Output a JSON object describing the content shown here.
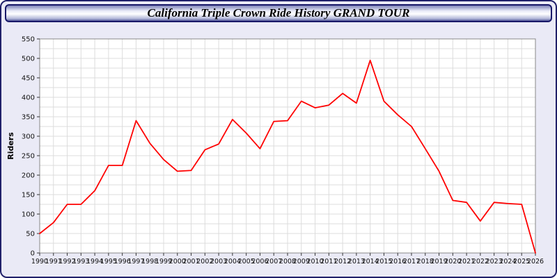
{
  "chart_data": {
    "type": "line",
    "title": "California Triple Crown Ride History GRAND TOUR",
    "ylabel": "Riders",
    "xlabel": "",
    "ylim": [
      0,
      550
    ],
    "ytick_step": 50,
    "grid_step": 25,
    "grid_color": "#dcdcdc",
    "plot_bg": "#ffffff",
    "axis_color": "#888888",
    "tick_color": "#333333",
    "label_color": "#111111",
    "line_color": "#ff0000",
    "legend": "none",
    "grid": "on",
    "x": [
      "1990",
      "1991",
      "1992",
      "1993",
      "1994",
      "1995",
      "1996",
      "1997",
      "1998",
      "1999",
      "2000",
      "2001",
      "2002",
      "2003",
      "2004",
      "2005",
      "2006",
      "2007",
      "2008",
      "2009",
      "2010",
      "2011",
      "2012",
      "2013",
      "2014",
      "2015",
      "2016",
      "2017",
      "2018",
      "2019",
      "2020",
      "2021",
      "2022",
      "2023",
      "2024",
      "2025",
      "2026"
    ],
    "series": [
      {
        "name": "Riders",
        "values": [
          50,
          78,
          125,
          125,
          160,
          225,
          225,
          340,
          282,
          240,
          210,
          212,
          265,
          280,
          343,
          308,
          268,
          338,
          340,
          390,
          373,
          380,
          410,
          385,
          495,
          390,
          355,
          325,
          268,
          210,
          135,
          130,
          82,
          130,
          127,
          125,
          0
        ]
      }
    ]
  }
}
